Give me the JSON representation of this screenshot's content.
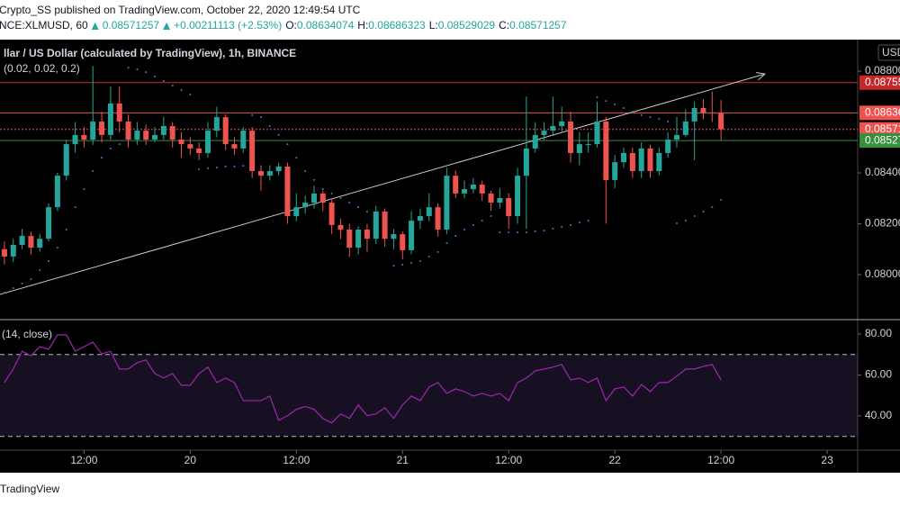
{
  "chart_data": {
    "type": "candlestick",
    "published": "Crypto_SS published on TradingView.com, October 22, 2020 12:49:54 UTC",
    "symbol": "NCE:XLMUSD, 60",
    "change": "+0.00211113 (+2.53%)",
    "ohlc_labels": [
      "O:",
      "H:",
      "L:",
      "C:"
    ],
    "title": "llar / US Dollar (calculated by TradingView), 1h, BINANCE",
    "currency": "USD",
    "footer": "TradingView",
    "up_color": "#26a69a",
    "down_color": "#ef5350",
    "open": [
      0.081,
      0.08071,
      0.08117,
      0.08152,
      0.08106,
      0.08141,
      0.08265,
      0.08389,
      0.08513,
      0.08549,
      0.08531,
      0.08602,
      0.08549,
      0.08673,
      0.08602,
      0.08531,
      0.08566,
      0.08531,
      0.08549,
      0.08584,
      0.08531,
      0.08513,
      0.08496,
      0.08478,
      0.08566,
      0.08619,
      0.08513,
      0.08496,
      0.08566,
      0.08407,
      0.08389,
      0.08407,
      0.08425,
      0.0823,
      0.08265,
      0.08283,
      0.08319,
      0.08283,
      0.08195,
      0.08177,
      0.08106,
      0.08177,
      0.08141,
      0.08248,
      0.08141,
      0.08159,
      0.08096,
      0.08212,
      0.0823,
      0.08265,
      0.08177,
      0.08389,
      0.08319,
      0.08336,
      0.08354,
      0.08319,
      0.08283,
      0.08301,
      0.0823,
      0.08389,
      0.08496,
      0.08549,
      0.08566,
      0.08584,
      0.08602,
      0.08478,
      0.08513,
      0.08513,
      0.08602,
      0.08372,
      0.08442,
      0.08478,
      0.08407,
      0.08496,
      0.08407,
      0.08478,
      0.08531,
      0.08549,
      0.08602,
      0.08655,
      0.08637,
      0.08634074
    ],
    "high": [
      0.0813,
      0.0814,
      0.0818,
      0.0817,
      0.0816,
      0.0828,
      0.084,
      0.0853,
      0.086,
      0.0858,
      0.0882,
      0.0864,
      0.0874,
      0.0874,
      0.0863,
      0.086,
      0.0859,
      0.0858,
      0.0862,
      0.086,
      0.0856,
      0.0854,
      0.0852,
      0.086,
      0.0866,
      0.0863,
      0.0854,
      0.0858,
      0.0858,
      0.0843,
      0.0843,
      0.0844,
      0.0844,
      0.0832,
      0.0831,
      0.0835,
      0.0833,
      0.083,
      0.0822,
      0.082,
      0.0819,
      0.082,
      0.0827,
      0.0826,
      0.0818,
      0.0817,
      0.0825,
      0.0826,
      0.0832,
      0.0828,
      0.0842,
      0.0841,
      0.0837,
      0.0838,
      0.0837,
      0.0833,
      0.0834,
      0.0832,
      0.0842,
      0.087,
      0.086,
      0.086,
      0.087,
      0.0866,
      0.0864,
      0.0856,
      0.0856,
      0.0868,
      0.0862,
      0.0847,
      0.085,
      0.085,
      0.0852,
      0.0851,
      0.085,
      0.0856,
      0.0862,
      0.0865,
      0.0868,
      0.0869,
      0.0872,
      0.08686323
    ],
    "low": [
      0.0804,
      0.0805,
      0.081,
      0.0808,
      0.0809,
      0.0813,
      0.0825,
      0.0837,
      0.0848,
      0.085,
      0.0851,
      0.0852,
      0.0853,
      0.0856,
      0.085,
      0.0851,
      0.0851,
      0.0852,
      0.0853,
      0.085,
      0.0846,
      0.0847,
      0.0845,
      0.0846,
      0.0854,
      0.0849,
      0.0847,
      0.0848,
      0.0838,
      0.0833,
      0.0837,
      0.0839,
      0.082,
      0.0821,
      0.0824,
      0.0826,
      0.0825,
      0.0816,
      0.0814,
      0.0807,
      0.0808,
      0.0809,
      0.0812,
      0.0811,
      0.081,
      0.0806,
      0.0808,
      0.0818,
      0.0821,
      0.0815,
      0.0816,
      0.083,
      0.083,
      0.0832,
      0.0829,
      0.0825,
      0.0826,
      0.0818,
      0.082,
      0.0818,
      0.0848,
      0.0853,
      0.0855,
      0.0856,
      0.0844,
      0.0843,
      0.0848,
      0.085,
      0.082,
      0.0834,
      0.0842,
      0.0838,
      0.0838,
      0.0838,
      0.0839,
      0.0846,
      0.085,
      0.0854,
      0.0845,
      0.0861,
      0.086,
      0.08529029
    ],
    "close": [
      0.08071,
      0.08117,
      0.08152,
      0.08106,
      0.08141,
      0.08265,
      0.08389,
      0.08513,
      0.08549,
      0.08531,
      0.08602,
      0.08549,
      0.08673,
      0.08602,
      0.08531,
      0.08566,
      0.08531,
      0.08549,
      0.08584,
      0.08531,
      0.08513,
      0.08496,
      0.08478,
      0.08566,
      0.08619,
      0.08513,
      0.08496,
      0.08566,
      0.08407,
      0.08389,
      0.08407,
      0.08425,
      0.0823,
      0.08265,
      0.08283,
      0.08319,
      0.08283,
      0.08195,
      0.08177,
      0.08106,
      0.08177,
      0.08141,
      0.08248,
      0.08141,
      0.08159,
      0.08096,
      0.08212,
      0.0823,
      0.08265,
      0.08177,
      0.08389,
      0.08319,
      0.08336,
      0.08354,
      0.08319,
      0.08283,
      0.08301,
      0.0823,
      0.08389,
      0.08496,
      0.08549,
      0.08566,
      0.08584,
      0.08602,
      0.08478,
      0.08513,
      0.08513,
      0.08602,
      0.08372,
      0.08442,
      0.08478,
      0.08407,
      0.08496,
      0.08407,
      0.08478,
      0.08531,
      0.08549,
      0.08602,
      0.08655,
      0.08637,
      0.08634074,
      0.08571257
    ],
    "psar": {
      "label": "(0.02, 0.02, 0.2)",
      "color": "#4a78d8",
      "values": [
        0.07929,
        0.07947,
        0.07965,
        0.07982,
        0.08018,
        0.08053,
        0.08106,
        0.08177,
        0.08265,
        0.08336,
        0.08407,
        0.0846,
        0.08496,
        0.08513,
        0.08814,
        0.08807,
        0.08796,
        0.08779,
        0.08761,
        0.08743,
        0.08726,
        0.08708,
        0.08414,
        0.08418,
        0.08421,
        0.08425,
        0.08425,
        0.08428,
        0.08627,
        0.08619,
        0.08584,
        0.08549,
        0.08513,
        0.0846,
        0.08407,
        0.08372,
        0.08336,
        0.08319,
        0.08301,
        0.08283,
        0.08265,
        0.08248,
        0.08237,
        0.0823,
        0.08035,
        0.08039,
        0.08046,
        0.08053,
        0.08071,
        0.08089,
        0.08124,
        0.08152,
        0.08177,
        0.08195,
        0.08212,
        0.0823,
        0.08166,
        0.08166,
        0.08166,
        0.08166,
        0.0817,
        0.08173,
        0.08181,
        0.08188,
        0.08195,
        0.08205,
        0.08212,
        0.08697,
        0.08683,
        0.08669,
        0.08655,
        0.08641,
        0.08627,
        0.08619,
        0.08612,
        0.08602,
        0.08202,
        0.08212,
        0.0823,
        0.08248,
        0.08265,
        0.08294
      ]
    },
    "trend_line": {
      "color": "#c8c8c8",
      "x": [
        -0.5,
        85.97
      ],
      "y": [
        0.07922,
        0.08789
      ]
    },
    "price_lines": [
      {
        "value": 0.08755,
        "color": "#c62828",
        "dash": false
      },
      {
        "value": 0.08636,
        "color": "#ef5350",
        "dash": false
      },
      {
        "value": 0.08571,
        "color": "#ef5350",
        "dash": true
      },
      {
        "value": 0.08527,
        "color": "#388e3c",
        "dash": false
      }
    ],
    "xlim": [
      -0.5,
      96.45
    ],
    "xticks": [
      {
        "value": 9,
        "label": "12:00"
      },
      {
        "value": 21,
        "label": "20"
      },
      {
        "value": 33,
        "label": "12:00"
      },
      {
        "value": 45,
        "label": "21"
      },
      {
        "value": 57,
        "label": "12:00"
      },
      {
        "value": 69,
        "label": "22"
      },
      {
        "value": 81,
        "label": "12:00"
      },
      {
        "value": 93,
        "label": "23"
      }
    ],
    "ylim": [
      0.07823,
      0.08924
    ],
    "yticks": [
      {
        "value": 0.08,
        "label": "0.08000"
      },
      {
        "value": 0.082,
        "label": "0.08200"
      },
      {
        "value": 0.084,
        "label": "0.08400"
      },
      {
        "value": 0.088,
        "label": "0.08800"
      }
    ],
    "rsi": {
      "label": "(14, close)",
      "color": "#9c27b0",
      "values": [
        56.3,
        62.9,
        71.6,
        69.4,
        73.8,
        72.5,
        79.6,
        79.6,
        71.6,
        73.8,
        76.0,
        70.3,
        71.6,
        62.9,
        62.9,
        66.0,
        67.3,
        60.7,
        58.5,
        60.7,
        55.0,
        55.0,
        60.7,
        63.8,
        56.3,
        58.5,
        56.3,
        47.5,
        47.5,
        47.5,
        49.7,
        37.9,
        40.1,
        43.2,
        44.6,
        43.2,
        38.8,
        36.6,
        41.0,
        38.8,
        45.4,
        40.1,
        41.0,
        44.0,
        38.8,
        45.4,
        49.7,
        47.5,
        54.1,
        56.3,
        51.0,
        53.2,
        51.9,
        49.7,
        51.0,
        49.7,
        51.0,
        47.5,
        56.3,
        58.5,
        62.0,
        62.9,
        63.8,
        65.1,
        57.6,
        58.5,
        56.3,
        58.5,
        47.5,
        53.2,
        54.1,
        49.7,
        55.4,
        51.9,
        56.3,
        56.3,
        59.4,
        62.9,
        62.9,
        64.2,
        65.1,
        57.6
      ],
      "bands": [
        70,
        30
      ],
      "ylim": [
        23.3,
        87.0
      ],
      "yticks": [
        {
          "value": 40,
          "label": "40.00"
        },
        {
          "value": 60,
          "label": "60.00"
        },
        {
          "value": 80,
          "label": "80.00"
        }
      ]
    }
  }
}
